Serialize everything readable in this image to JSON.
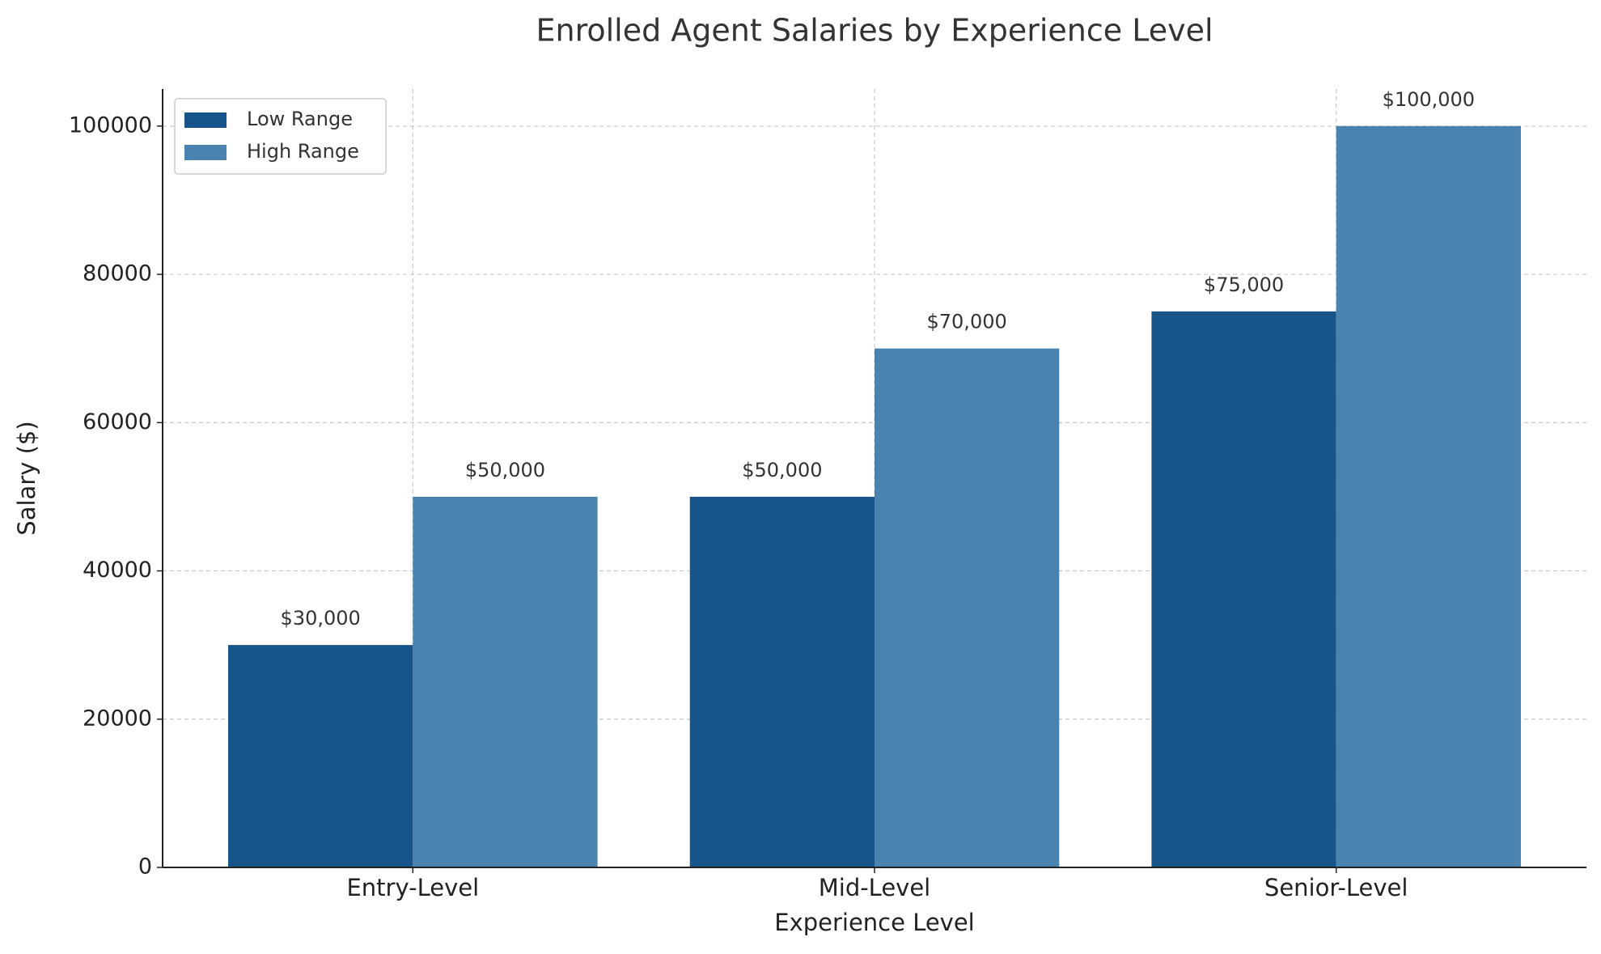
{
  "chart_data": {
    "type": "bar",
    "title": "Enrolled Agent Salaries by Experience Level",
    "xlabel": "Experience Level",
    "ylabel": "Salary ($)",
    "categories": [
      "Entry-Level",
      "Mid-Level",
      "Senior-Level"
    ],
    "series": [
      {
        "name": "Low Range",
        "color": "#17548a",
        "values": [
          30000,
          50000,
          75000
        ],
        "value_labels": [
          "$30,000",
          "$50,000",
          "$75,000"
        ]
      },
      {
        "name": "High Range",
        "color": "#4b83b0",
        "values": [
          50000,
          70000,
          100000
        ],
        "value_labels": [
          "$50,000",
          "$70,000",
          "$100,000"
        ]
      }
    ],
    "ylim": [
      0,
      105000
    ],
    "yticks": [
      0,
      20000,
      40000,
      60000,
      80000,
      100000
    ],
    "grid": true,
    "legend": "upper left"
  }
}
